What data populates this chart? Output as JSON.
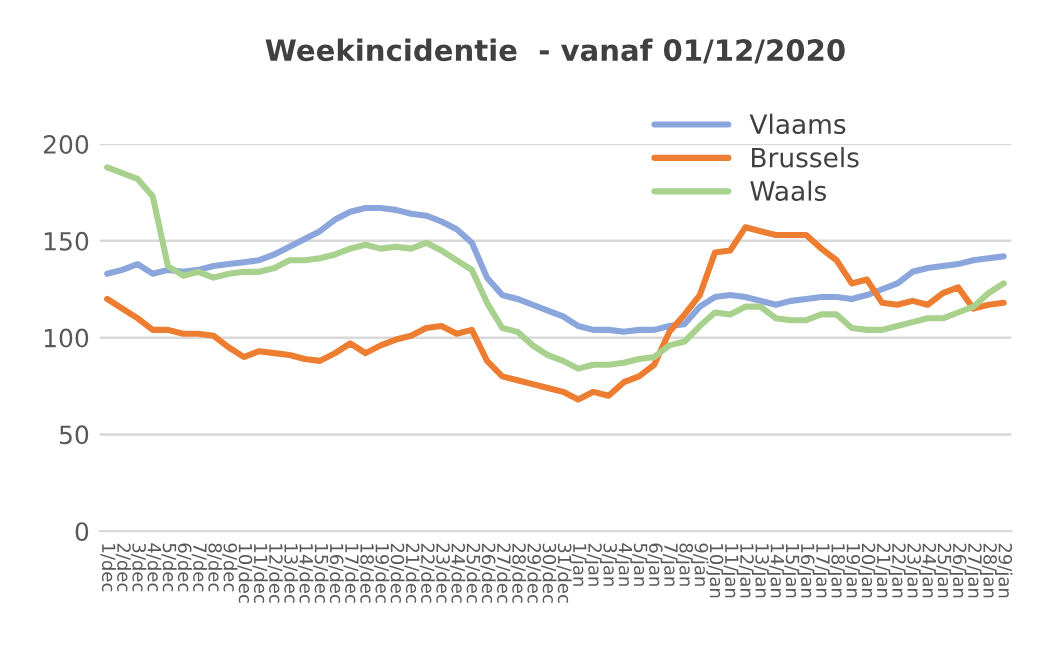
{
  "chart_data": {
    "type": "line",
    "title": "Weekincidentie  - vanaf 01/12/2020",
    "categories": [
      "1/dec",
      "2/dec",
      "3/dec",
      "4/dec",
      "5/dec",
      "6/dec",
      "7/dec",
      "8/dec",
      "9/dec",
      "10/dec",
      "11/dec",
      "12/dec",
      "13/dec",
      "14/dec",
      "15/dec",
      "16/dec",
      "17/dec",
      "18/dec",
      "19/dec",
      "20/dec",
      "21/dec",
      "22/dec",
      "23/dec",
      "24/dec",
      "25/dec",
      "26/dec",
      "27/dec",
      "28/dec",
      "29/dec",
      "30/dec",
      "31/dec",
      "1/jan",
      "2/jan",
      "3/jan",
      "4/jan",
      "5/jan",
      "6/jan",
      "7/jan",
      "8/jan",
      "9/jan",
      "10/jan",
      "11/jan",
      "12/jan",
      "13/jan",
      "14/jan",
      "15/jan",
      "16/jan",
      "17/jan",
      "18/jan",
      "19/jan",
      "20/jan",
      "21/jan",
      "22/jan",
      "23/jan",
      "24/jan",
      "25/jan",
      "26/jan",
      "27/jan",
      "28/jan",
      "29/jan"
    ],
    "series": [
      {
        "name": "Vlaams",
        "color": "#8aa6dc",
        "values": [
          133,
          135,
          138,
          133,
          135,
          134,
          135,
          137,
          138,
          139,
          140,
          143,
          147,
          151,
          155,
          161,
          165,
          167,
          167,
          166,
          164,
          163,
          160,
          156,
          149,
          131,
          122,
          120,
          117,
          114,
          111,
          106,
          104,
          104,
          103,
          104,
          104,
          106,
          107,
          116,
          121,
          122,
          121,
          119,
          117,
          119,
          120,
          121,
          121,
          120,
          122,
          125,
          128,
          134,
          136,
          137,
          138,
          140,
          141,
          142
        ]
      },
      {
        "name": "Brussels",
        "color": "#ed7d31",
        "values": [
          120,
          115,
          110,
          104,
          104,
          102,
          102,
          101,
          95,
          90,
          93,
          92,
          91,
          89,
          88,
          92,
          97,
          92,
          96,
          99,
          101,
          105,
          106,
          102,
          104,
          88,
          80,
          78,
          76,
          74,
          72,
          68,
          72,
          70,
          77,
          80,
          86,
          103,
          112,
          122,
          144,
          145,
          157,
          155,
          153,
          153,
          153,
          146,
          140,
          128,
          130,
          118,
          117,
          119,
          117,
          123,
          126,
          115,
          117,
          118
        ]
      },
      {
        "name": "Waals",
        "color": "#a9d18e",
        "values": [
          188,
          185,
          182,
          173,
          137,
          132,
          134,
          131,
          133,
          134,
          134,
          136,
          140,
          140,
          141,
          143,
          146,
          148,
          146,
          147,
          146,
          149,
          145,
          140,
          135,
          118,
          105,
          103,
          96,
          91,
          88,
          84,
          86,
          86,
          87,
          89,
          90,
          96,
          98,
          106,
          113,
          112,
          116,
          116,
          110,
          109,
          109,
          112,
          112,
          105,
          104,
          104,
          106,
          108,
          110,
          110,
          113,
          116,
          123,
          128
        ]
      }
    ],
    "ylim": [
      0,
      200
    ],
    "yticks": [
      0,
      50,
      100,
      150,
      200
    ],
    "grid": "y",
    "legend": "top right",
    "marker": "none",
    "line_style": "solid"
  }
}
